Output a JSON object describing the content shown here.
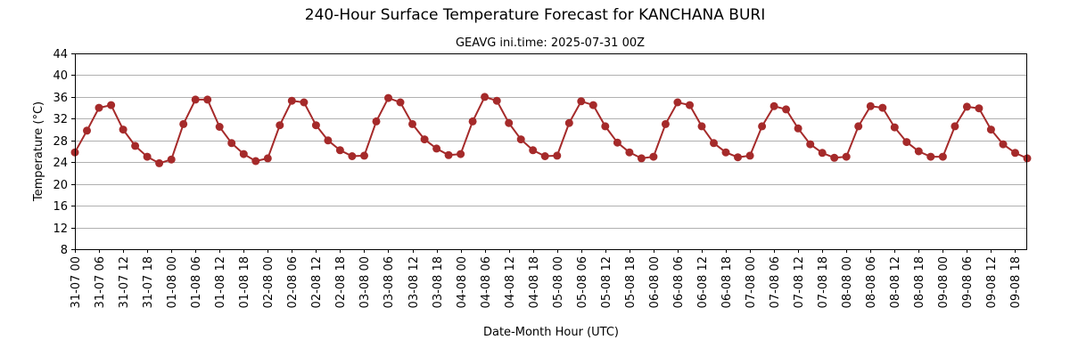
{
  "chart_data": {
    "type": "line",
    "title": "240-Hour Surface Temperature Forecast for KANCHANA BURI",
    "subtitle": "GEAVG ini.time: 2025-07-31 00Z",
    "xlabel": "Date-Month Hour (UTC)",
    "ylabel": "Temperature (°C)",
    "ylim": [
      8,
      44
    ],
    "yticks": [
      8,
      12,
      16,
      20,
      24,
      28,
      32,
      36,
      40,
      44
    ],
    "grid": "horizontal",
    "line_color": "#a52a2a",
    "x": [
      "31-07 00",
      "31-07 03",
      "31-07 06",
      "31-07 09",
      "31-07 12",
      "31-07 15",
      "31-07 18",
      "31-07 21",
      "01-08 00",
      "01-08 03",
      "01-08 06",
      "01-08 09",
      "01-08 12",
      "01-08 15",
      "01-08 18",
      "01-08 21",
      "02-08 00",
      "02-08 03",
      "02-08 06",
      "02-08 09",
      "02-08 12",
      "02-08 15",
      "02-08 18",
      "02-08 21",
      "03-08 00",
      "03-08 03",
      "03-08 06",
      "03-08 09",
      "03-08 12",
      "03-08 15",
      "03-08 18",
      "03-08 21",
      "04-08 00",
      "04-08 03",
      "04-08 06",
      "04-08 09",
      "04-08 12",
      "04-08 15",
      "04-08 18",
      "04-08 21",
      "05-08 00",
      "05-08 03",
      "05-08 06",
      "05-08 09",
      "05-08 12",
      "05-08 15",
      "05-08 18",
      "05-08 21",
      "06-08 00",
      "06-08 03",
      "06-08 06",
      "06-08 09",
      "06-08 12",
      "06-08 15",
      "06-08 18",
      "06-08 21",
      "07-08 00",
      "07-08 03",
      "07-08 06",
      "07-08 09",
      "07-08 12",
      "07-08 15",
      "07-08 18",
      "07-08 21",
      "08-08 00",
      "08-08 03",
      "08-08 06",
      "08-08 09",
      "08-08 12",
      "08-08 15",
      "08-08 18",
      "08-08 21",
      "09-08 00",
      "09-08 03",
      "09-08 06",
      "09-08 09",
      "09-08 12",
      "09-08 15",
      "09-08 18",
      "09-08 21"
    ],
    "xtick_labels": [
      "31-07 00",
      "31-07 06",
      "31-07 12",
      "31-07 18",
      "01-08 00",
      "01-08 06",
      "01-08 12",
      "01-08 18",
      "02-08 00",
      "02-08 06",
      "02-08 12",
      "02-08 18",
      "03-08 00",
      "03-08 06",
      "03-08 12",
      "03-08 18",
      "04-08 00",
      "04-08 06",
      "04-08 12",
      "04-08 18",
      "05-08 00",
      "05-08 06",
      "05-08 12",
      "05-08 18",
      "06-08 00",
      "06-08 06",
      "06-08 12",
      "06-08 18",
      "07-08 00",
      "07-08 06",
      "07-08 12",
      "07-08 18",
      "08-08 00",
      "08-08 06",
      "08-08 12",
      "08-08 18",
      "09-08 00",
      "09-08 06",
      "09-08 12",
      "09-08 18"
    ],
    "series": [
      {
        "values": [
          25.8,
          29.8,
          34.0,
          34.5,
          30.0,
          27.0,
          25.0,
          23.8,
          24.5,
          31.0,
          35.5,
          35.5,
          30.5,
          27.5,
          25.5,
          24.2,
          24.7,
          30.8,
          35.3,
          35.0,
          30.8,
          28.0,
          26.2,
          25.1,
          25.2,
          31.5,
          35.8,
          35.0,
          31.0,
          28.2,
          26.5,
          25.3,
          25.5,
          31.5,
          36.0,
          35.3,
          31.2,
          28.2,
          26.2,
          25.1,
          25.2,
          31.2,
          35.2,
          34.5,
          30.6,
          27.6,
          25.8,
          24.7,
          25.0,
          31.0,
          35.0,
          34.5,
          30.6,
          27.5,
          25.8,
          24.9,
          25.2,
          30.6,
          34.3,
          33.7,
          30.2,
          27.3,
          25.7,
          24.8,
          25.0,
          30.6,
          34.3,
          34.0,
          30.4,
          27.7,
          26.0,
          25.0,
          25.0,
          30.6,
          34.2,
          33.9,
          30.0,
          27.3,
          25.7,
          24.7
        ]
      }
    ]
  }
}
